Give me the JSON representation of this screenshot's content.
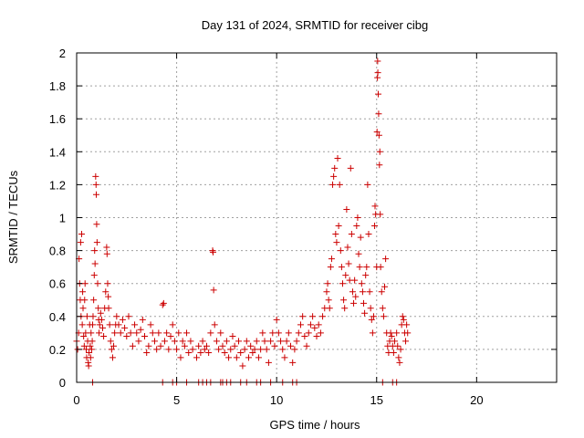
{
  "chart_data": {
    "type": "scatter",
    "title": "Day 131 of 2024, SRMTID for receiver cibg",
    "xlabel": "GPS time / hours",
    "ylabel": "SRMTID / TECUs",
    "xlim": [
      0,
      24
    ],
    "ylim": [
      0,
      2
    ],
    "xticks": [
      0,
      5,
      10,
      15,
      20
    ],
    "xtick_labels": [
      "0",
      "5",
      "10",
      "15",
      "20"
    ],
    "yticks": [
      0,
      0.2,
      0.4,
      0.6,
      0.8,
      1,
      1.2,
      1.4,
      1.6,
      1.8,
      2
    ],
    "ytick_labels": [
      "0",
      "0.2",
      "0.4",
      "0.6",
      "0.8",
      "1",
      "1.2",
      "1.4",
      "1.6",
      "1.8",
      "2"
    ],
    "grid": true,
    "marker": "+",
    "color": "#cc0000",
    "series": [
      {
        "name": "SRMTID",
        "points": [
          [
            0.0,
            0.25
          ],
          [
            0.05,
            0.2
          ],
          [
            0.1,
            0.3
          ],
          [
            0.12,
            0.75
          ],
          [
            0.15,
            0.6
          ],
          [
            0.18,
            0.5
          ],
          [
            0.2,
            0.85
          ],
          [
            0.22,
            0.4
          ],
          [
            0.25,
            0.9
          ],
          [
            0.28,
            0.35
          ],
          [
            0.3,
            0.55
          ],
          [
            0.32,
            0.45
          ],
          [
            0.35,
            0.28
          ],
          [
            0.38,
            0.22
          ],
          [
            0.4,
            0.5
          ],
          [
            0.42,
            0.6
          ],
          [
            0.45,
            0.3
          ],
          [
            0.48,
            0.2
          ],
          [
            0.5,
            0.15
          ],
          [
            0.52,
            0.4
          ],
          [
            0.55,
            0.25
          ],
          [
            0.58,
            0.12
          ],
          [
            0.6,
            0.1
          ],
          [
            0.62,
            0.18
          ],
          [
            0.65,
            0.35
          ],
          [
            0.68,
            0.22
          ],
          [
            0.7,
            0.15
          ],
          [
            0.72,
            0.3
          ],
          [
            0.75,
            0.2
          ],
          [
            0.78,
            0.25
          ],
          [
            0.8,
            0.35
          ],
          [
            0.82,
            0.4
          ],
          [
            0.85,
            0.5
          ],
          [
            0.88,
            0.65
          ],
          [
            0.9,
            0.8
          ],
          [
            0.92,
            0.72
          ],
          [
            0.95,
            1.25
          ],
          [
            0.97,
            1.2
          ],
          [
            0.98,
            1.14
          ],
          [
            1.0,
            0.96
          ],
          [
            1.02,
            0.85
          ],
          [
            1.05,
            0.6
          ],
          [
            1.08,
            0.45
          ],
          [
            1.1,
            0.38
          ],
          [
            1.12,
            0.3
          ],
          [
            1.15,
            0.35
          ],
          [
            1.2,
            0.42
          ],
          [
            1.25,
            0.38
          ],
          [
            1.3,
            0.33
          ],
          [
            1.35,
            0.28
          ],
          [
            1.4,
            0.45
          ],
          [
            1.45,
            0.55
          ],
          [
            1.5,
            0.82
          ],
          [
            1.52,
            0.78
          ],
          [
            1.55,
            0.6
          ],
          [
            1.58,
            0.52
          ],
          [
            1.6,
            0.45
          ],
          [
            1.65,
            0.35
          ],
          [
            1.7,
            0.25
          ],
          [
            1.75,
            0.2
          ],
          [
            1.8,
            0.15
          ],
          [
            1.85,
            0.22
          ],
          [
            1.9,
            0.3
          ],
          [
            1.95,
            0.35
          ],
          [
            2.0,
            0.4
          ],
          [
            2.1,
            0.35
          ],
          [
            2.2,
            0.3
          ],
          [
            2.3,
            0.38
          ],
          [
            2.4,
            0.33
          ],
          [
            2.5,
            0.28
          ],
          [
            2.6,
            0.4
          ],
          [
            2.7,
            0.3
          ],
          [
            2.8,
            0.22
          ],
          [
            2.9,
            0.35
          ],
          [
            3.0,
            0.3
          ],
          [
            3.1,
            0.25
          ],
          [
            3.2,
            0.32
          ],
          [
            3.3,
            0.38
          ],
          [
            3.4,
            0.28
          ],
          [
            3.5,
            0.18
          ],
          [
            3.6,
            0.22
          ],
          [
            3.7,
            0.35
          ],
          [
            3.8,
            0.3
          ],
          [
            3.9,
            0.25
          ],
          [
            4.0,
            0.2
          ],
          [
            4.1,
            0.3
          ],
          [
            4.2,
            0.22
          ],
          [
            4.3,
            0.47
          ],
          [
            4.35,
            0.48
          ],
          [
            4.4,
            0.25
          ],
          [
            4.5,
            0.3
          ],
          [
            4.6,
            0.2
          ],
          [
            4.7,
            0.28
          ],
          [
            4.8,
            0.35
          ],
          [
            4.9,
            0.25
          ],
          [
            5.0,
            0.2
          ],
          [
            5.1,
            0.3
          ],
          [
            5.2,
            0.15
          ],
          [
            5.3,
            0.25
          ],
          [
            5.4,
            0.22
          ],
          [
            5.5,
            0.3
          ],
          [
            5.6,
            0.18
          ],
          [
            5.7,
            0.25
          ],
          [
            5.8,
            0.2
          ],
          [
            6.0,
            0.15
          ],
          [
            6.1,
            0.22
          ],
          [
            6.2,
            0.18
          ],
          [
            6.3,
            0.25
          ],
          [
            6.4,
            0.2
          ],
          [
            6.5,
            0.22
          ],
          [
            6.6,
            0.18
          ],
          [
            6.7,
            0.3
          ],
          [
            6.8,
            0.8
          ],
          [
            6.82,
            0.79
          ],
          [
            6.85,
            0.56
          ],
          [
            6.9,
            0.35
          ],
          [
            7.0,
            0.25
          ],
          [
            7.1,
            0.2
          ],
          [
            7.2,
            0.3
          ],
          [
            7.3,
            0.22
          ],
          [
            7.4,
            0.18
          ],
          [
            7.5,
            0.25
          ],
          [
            7.6,
            0.15
          ],
          [
            7.7,
            0.2
          ],
          [
            7.8,
            0.28
          ],
          [
            7.9,
            0.22
          ],
          [
            8.0,
            0.15
          ],
          [
            8.1,
            0.25
          ],
          [
            8.2,
            0.18
          ],
          [
            8.3,
            0.1
          ],
          [
            8.4,
            0.2
          ],
          [
            8.5,
            0.25
          ],
          [
            8.6,
            0.15
          ],
          [
            8.7,
            0.22
          ],
          [
            8.8,
            0.18
          ],
          [
            8.9,
            0.2
          ],
          [
            9.0,
            0.25
          ],
          [
            9.1,
            0.15
          ],
          [
            9.2,
            0.2
          ],
          [
            9.3,
            0.3
          ],
          [
            9.4,
            0.25
          ],
          [
            9.5,
            0.2
          ],
          [
            9.6,
            0.12
          ],
          [
            9.7,
            0.25
          ],
          [
            9.8,
            0.3
          ],
          [
            9.9,
            0.22
          ],
          [
            10.0,
            0.38
          ],
          [
            10.1,
            0.3
          ],
          [
            10.2,
            0.25
          ],
          [
            10.3,
            0.2
          ],
          [
            10.4,
            0.15
          ],
          [
            10.5,
            0.25
          ],
          [
            10.6,
            0.3
          ],
          [
            10.7,
            0.22
          ],
          [
            10.8,
            0.12
          ],
          [
            10.9,
            0.2
          ],
          [
            11.0,
            0.25
          ],
          [
            11.1,
            0.3
          ],
          [
            11.2,
            0.35
          ],
          [
            11.3,
            0.4
          ],
          [
            11.4,
            0.28
          ],
          [
            11.5,
            0.22
          ],
          [
            11.6,
            0.3
          ],
          [
            11.7,
            0.35
          ],
          [
            11.8,
            0.4
          ],
          [
            11.9,
            0.33
          ],
          [
            12.0,
            0.28
          ],
          [
            12.1,
            0.35
          ],
          [
            12.2,
            0.3
          ],
          [
            12.3,
            0.4
          ],
          [
            12.4,
            0.45
          ],
          [
            12.5,
            0.55
          ],
          [
            12.55,
            0.6
          ],
          [
            12.6,
            0.5
          ],
          [
            12.65,
            0.45
          ],
          [
            12.7,
            0.7
          ],
          [
            12.75,
            0.75
          ],
          [
            12.8,
            1.2
          ],
          [
            12.85,
            1.25
          ],
          [
            12.9,
            1.3
          ],
          [
            12.95,
            0.9
          ],
          [
            13.0,
            0.85
          ],
          [
            13.05,
            1.36
          ],
          [
            13.1,
            0.95
          ],
          [
            13.15,
            1.2
          ],
          [
            13.2,
            0.8
          ],
          [
            13.25,
            0.7
          ],
          [
            13.3,
            0.6
          ],
          [
            13.35,
            0.5
          ],
          [
            13.4,
            0.45
          ],
          [
            13.45,
            0.65
          ],
          [
            13.5,
            1.05
          ],
          [
            13.55,
            0.82
          ],
          [
            13.6,
            0.72
          ],
          [
            13.65,
            0.62
          ],
          [
            13.7,
            1.3
          ],
          [
            13.75,
            0.9
          ],
          [
            13.8,
            0.55
          ],
          [
            13.85,
            0.48
          ],
          [
            13.9,
            0.62
          ],
          [
            13.95,
            0.52
          ],
          [
            14.0,
            0.95
          ],
          [
            14.05,
            1.0
          ],
          [
            14.1,
            0.78
          ],
          [
            14.15,
            0.7
          ],
          [
            14.2,
            0.88
          ],
          [
            14.25,
            0.6
          ],
          [
            14.3,
            0.55
          ],
          [
            14.35,
            0.48
          ],
          [
            14.4,
            0.42
          ],
          [
            14.45,
            0.65
          ],
          [
            14.5,
            0.7
          ],
          [
            14.55,
            1.2
          ],
          [
            14.6,
            0.9
          ],
          [
            14.65,
            0.55
          ],
          [
            14.7,
            0.45
          ],
          [
            14.75,
            0.38
          ],
          [
            14.8,
            0.3
          ],
          [
            14.85,
            0.4
          ],
          [
            14.9,
            0.95
          ],
          [
            14.92,
            1.07
          ],
          [
            14.95,
            1.02
          ],
          [
            15.0,
            0.7
          ],
          [
            15.02,
            1.52
          ],
          [
            15.04,
            1.85
          ],
          [
            15.05,
            1.95
          ],
          [
            15.06,
            1.88
          ],
          [
            15.08,
            1.75
          ],
          [
            15.1,
            1.63
          ],
          [
            15.12,
            1.5
          ],
          [
            15.14,
            1.32
          ],
          [
            15.16,
            1.4
          ],
          [
            15.18,
            1.02
          ],
          [
            15.2,
            0.7
          ],
          [
            15.25,
            0.55
          ],
          [
            15.3,
            0.45
          ],
          [
            15.35,
            0.4
          ],
          [
            15.4,
            0.58
          ],
          [
            15.45,
            0.75
          ],
          [
            15.5,
            0.3
          ],
          [
            15.55,
            0.22
          ],
          [
            15.6,
            0.18
          ],
          [
            15.65,
            0.25
          ],
          [
            15.7,
            0.3
          ],
          [
            15.75,
            0.28
          ],
          [
            15.8,
            0.22
          ],
          [
            15.85,
            0.18
          ],
          [
            15.9,
            0.25
          ],
          [
            16.0,
            0.3
          ],
          [
            16.05,
            0.22
          ],
          [
            16.1,
            0.15
          ],
          [
            16.15,
            0.12
          ],
          [
            16.2,
            0.2
          ],
          [
            16.25,
            0.35
          ],
          [
            16.3,
            0.4
          ],
          [
            16.35,
            0.38
          ],
          [
            16.4,
            0.3
          ],
          [
            16.45,
            0.25
          ],
          [
            16.5,
            0.35
          ],
          [
            16.55,
            0.3
          ],
          [
            0.8,
            0.0
          ],
          [
            4.3,
            0.0
          ],
          [
            4.8,
            0.0
          ],
          [
            5.0,
            0.0
          ],
          [
            5.5,
            0.0
          ],
          [
            6.1,
            0.0
          ],
          [
            6.3,
            0.0
          ],
          [
            6.5,
            0.0
          ],
          [
            6.7,
            0.0
          ],
          [
            7.2,
            0.0
          ],
          [
            7.3,
            0.0
          ],
          [
            7.5,
            0.0
          ],
          [
            7.7,
            0.0
          ],
          [
            8.2,
            0.0
          ],
          [
            8.5,
            0.0
          ],
          [
            9.0,
            0.0
          ],
          [
            9.2,
            0.0
          ],
          [
            9.7,
            0.0
          ],
          [
            10.3,
            0.0
          ],
          [
            10.8,
            0.0
          ],
          [
            11.0,
            0.0
          ],
          [
            15.3,
            0.0
          ],
          [
            15.8,
            0.0
          ],
          [
            16.0,
            0.0
          ]
        ]
      }
    ]
  }
}
